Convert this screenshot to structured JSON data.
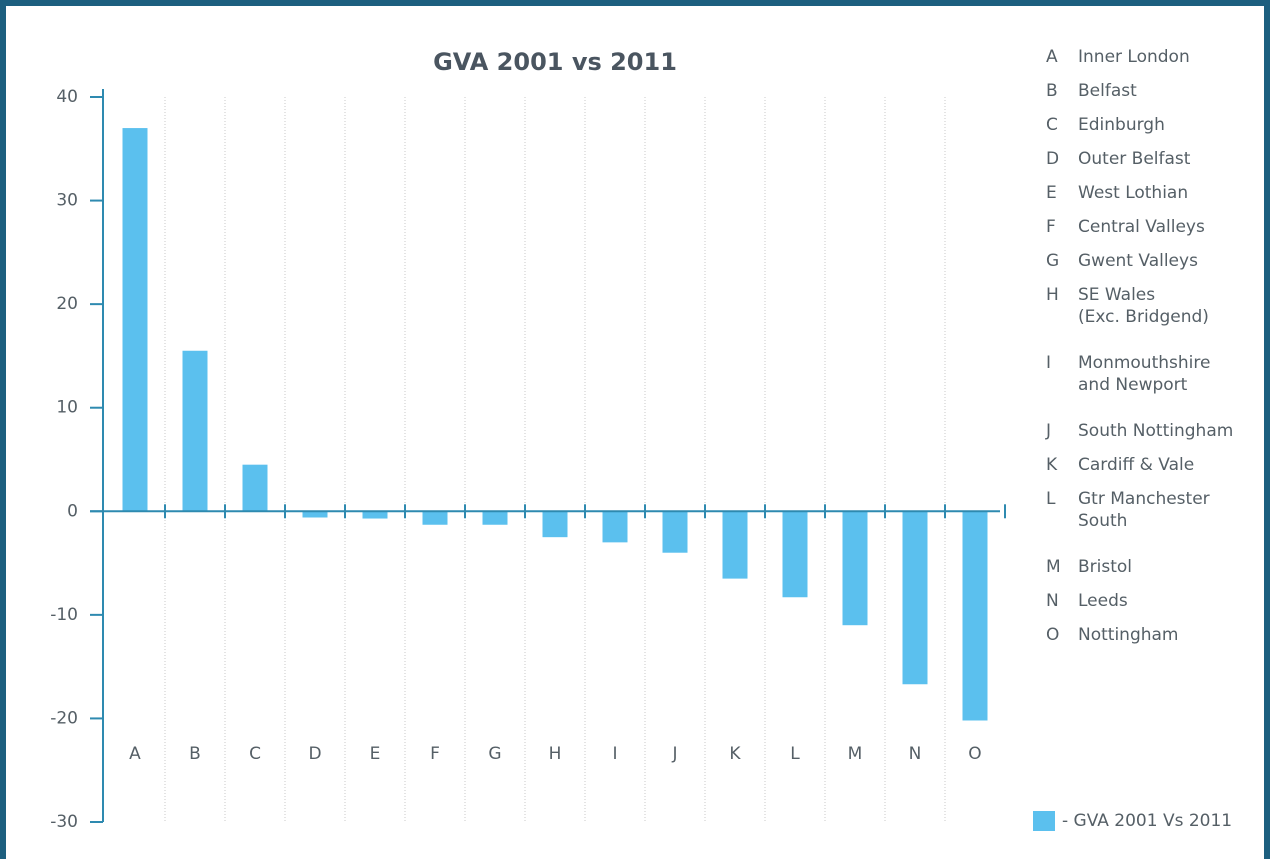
{
  "chart_data": {
    "type": "bar",
    "title": "GVA 2001 vs 2011",
    "categories": [
      "A",
      "B",
      "C",
      "D",
      "E",
      "F",
      "G",
      "H",
      "I",
      "J",
      "K",
      "L",
      "M",
      "N",
      "O"
    ],
    "series": [
      {
        "name": "- GVA 2001 Vs 2011",
        "color": "#5bc0ee",
        "values": [
          37,
          15.5,
          4.5,
          -0.6,
          -0.7,
          -1.3,
          -1.3,
          -2.5,
          -3,
          -4,
          -6.5,
          -8.3,
          -11,
          -16.7,
          -20.2
        ]
      }
    ],
    "ylim": [
      -30,
      40
    ],
    "yticks": [
      40,
      30,
      20,
      10,
      0,
      -10,
      -20,
      -30
    ],
    "key": [
      {
        "letter": "A",
        "name": [
          "Inner London"
        ]
      },
      {
        "letter": "B",
        "name": [
          "Belfast"
        ]
      },
      {
        "letter": "C",
        "name": [
          "Edinburgh"
        ]
      },
      {
        "letter": "D",
        "name": [
          "Outer Belfast"
        ]
      },
      {
        "letter": "E",
        "name": [
          "West Lothian"
        ]
      },
      {
        "letter": "F",
        "name": [
          "Central Valleys"
        ]
      },
      {
        "letter": "G",
        "name": [
          "Gwent Valleys"
        ]
      },
      {
        "letter": "H",
        "name": [
          "SE Wales",
          "(Exc. Bridgend)"
        ]
      },
      {
        "letter": "I",
        "name": [
          "Monmouthshire",
          "and Newport"
        ]
      },
      {
        "letter": "J",
        "name": [
          "South Nottingham"
        ]
      },
      {
        "letter": "K",
        "name": [
          "Cardiff & Vale"
        ]
      },
      {
        "letter": "L",
        "name": [
          "Gtr Manchester",
          "South"
        ]
      },
      {
        "letter": "M",
        "name": [
          "Bristol"
        ]
      },
      {
        "letter": "N",
        "name": [
          "Leeds"
        ]
      },
      {
        "letter": "O",
        "name": [
          "Nottingham"
        ]
      }
    ]
  }
}
